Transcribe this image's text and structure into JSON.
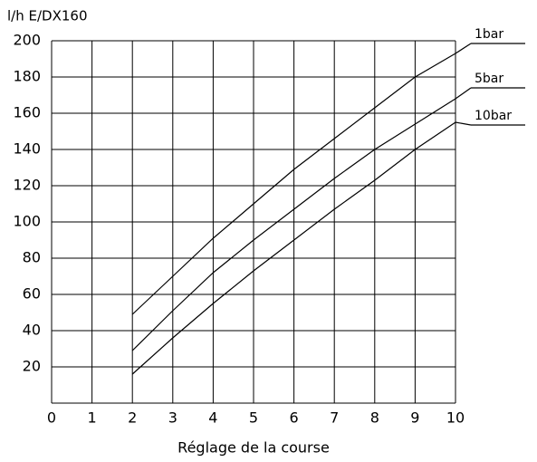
{
  "chart_data": {
    "type": "line",
    "title": "l/h E/DX160",
    "x_label": "Réglage de la course",
    "x": [
      2,
      3,
      4,
      5,
      6,
      7,
      8,
      9,
      10
    ],
    "series": [
      {
        "name": "1bar",
        "color": "#000000",
        "values": [
          49,
          70,
          91,
          110,
          129,
          146,
          163,
          180,
          193
        ]
      },
      {
        "name": "5bar",
        "color": "#000000",
        "values": [
          29,
          51,
          72,
          90,
          107,
          124,
          140,
          154,
          168
        ]
      },
      {
        "name": "10bar",
        "color": "#000000",
        "values": [
          16,
          36,
          55,
          73,
          90,
          107,
          123,
          140,
          155
        ]
      }
    ],
    "xlim": [
      0,
      10
    ],
    "xticks": [
      0,
      1,
      2,
      3,
      4,
      5,
      6,
      7,
      8,
      9,
      10
    ],
    "ylim": [
      0,
      200
    ],
    "yticks": [
      20,
      40,
      60,
      80,
      100,
      120,
      140,
      160,
      180,
      200
    ],
    "grid": true
  }
}
